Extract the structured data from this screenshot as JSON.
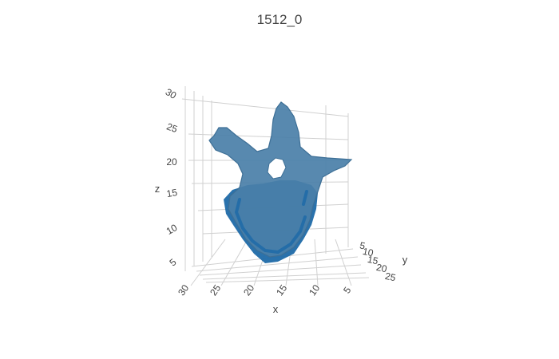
{
  "chart_data": {
    "type": "mesh3d",
    "title": "1512_0",
    "axes": {
      "x": {
        "label": "x",
        "ticks": [
          30,
          25,
          20,
          15,
          10,
          5
        ]
      },
      "y": {
        "label": "y",
        "ticks": [
          5,
          10,
          15,
          20,
          25
        ]
      },
      "z": {
        "label": "z",
        "ticks": [
          5,
          10,
          15,
          20,
          25,
          30
        ]
      }
    },
    "grid": true,
    "legend": "none",
    "mesh_color": "#4a7fa8",
    "mesh_dark_color": "#1f6aa8",
    "grid_color": "#d0d0d0"
  }
}
